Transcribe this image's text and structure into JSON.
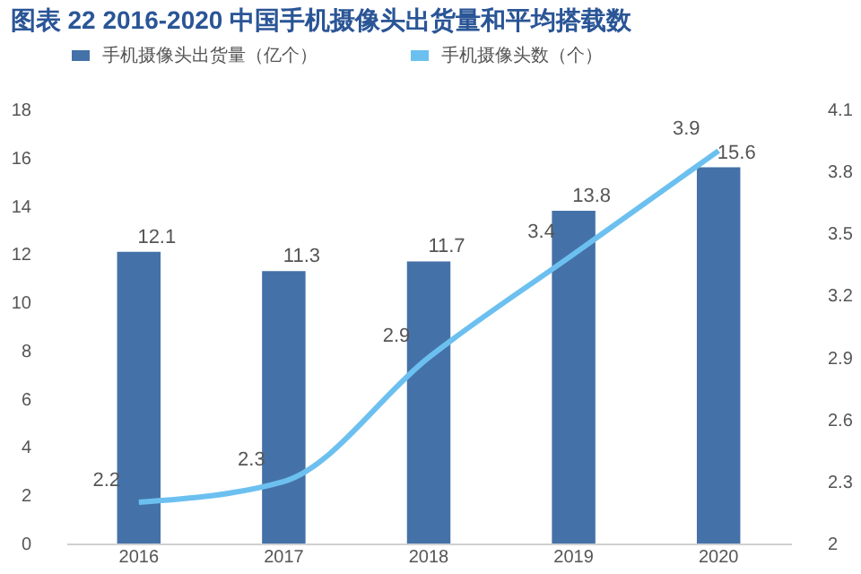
{
  "chart_data": {
    "type": "bar",
    "title": "图表 22 2016-2020 中国手机摄像头出货量和平均搭载数",
    "categories": [
      "2016",
      "2017",
      "2018",
      "2019",
      "2020"
    ],
    "series": [
      {
        "name": "手机摄像头出货量（亿个）",
        "color": "#4472a8",
        "values": [
          12.1,
          11.3,
          11.7,
          13.8,
          15.6
        ]
      },
      {
        "name": "手机摄像头数（个）",
        "type": "line",
        "axis": "y2",
        "color": "#6cc0f0",
        "values": [
          2.2,
          2.3,
          2.9,
          3.4,
          3.9
        ]
      }
    ],
    "ylim": [
      0,
      18
    ],
    "yticks": [
      0,
      2,
      4,
      6,
      8,
      10,
      12,
      14,
      16,
      18
    ],
    "y2lim": [
      2,
      4.1
    ],
    "y2ticks": [
      2,
      2.3,
      2.6,
      2.9,
      3.2,
      3.5,
      3.8,
      4.1
    ],
    "data_labels": true,
    "legend": "top",
    "grid": false
  }
}
